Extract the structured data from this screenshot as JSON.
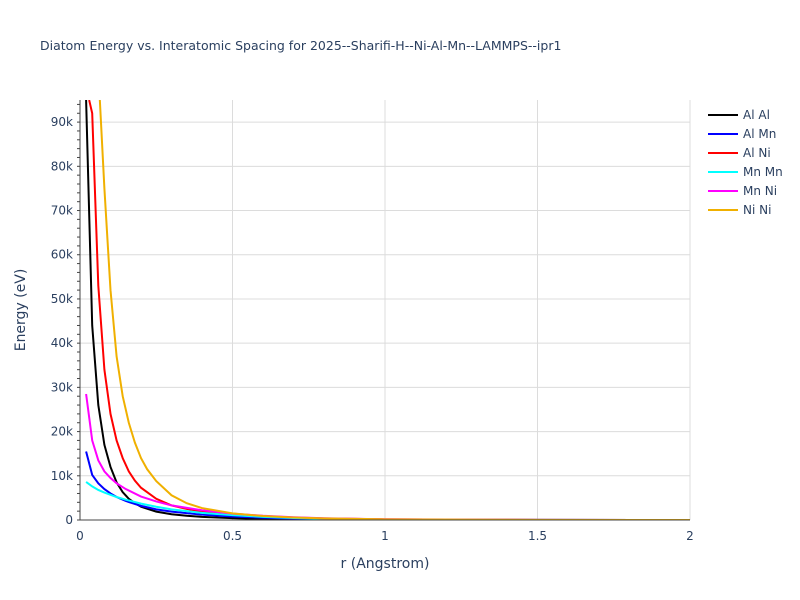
{
  "chart_data": {
    "type": "line",
    "title": "Diatom Energy vs. Interatomic Spacing for 2025--Sharifi-H--Ni-Al-Mn--LAMMPS--ipr1",
    "xlabel": "r (Angstrom)",
    "ylabel": "Energy (eV)",
    "xlim": [
      0,
      2
    ],
    "ylim": [
      0,
      95000
    ],
    "x_ticks": [
      0,
      0.5,
      1,
      1.5,
      2
    ],
    "x_tick_labels": [
      "0",
      "0.5",
      "1",
      "1.5",
      "2"
    ],
    "y_ticks": [
      0,
      10000,
      20000,
      30000,
      40000,
      50000,
      60000,
      70000,
      80000,
      90000
    ],
    "y_tick_labels": [
      "0",
      "10k",
      "20k",
      "30k",
      "40k",
      "50k",
      "60k",
      "70k",
      "80k",
      "90k"
    ],
    "grid": true,
    "legend_position": "top-right",
    "series": [
      {
        "name": "Al Al",
        "color": "#000000",
        "x": [
          0.02,
          0.04,
          0.06,
          0.08,
          0.1,
          0.12,
          0.14,
          0.16,
          0.18,
          0.2,
          0.25,
          0.3,
          0.35,
          0.4,
          0.5,
          0.6,
          0.7,
          0.8,
          1.0,
          1.5,
          2.0
        ],
        "y": [
          95000,
          44000,
          26000,
          17000,
          12000,
          8500,
          6300,
          4800,
          3800,
          3000,
          1900,
          1300,
          950,
          700,
          420,
          250,
          150,
          90,
          40,
          10,
          0
        ]
      },
      {
        "name": "Al Mn",
        "color": "#0000ff",
        "x": [
          0.02,
          0.04,
          0.06,
          0.08,
          0.1,
          0.12,
          0.15,
          0.2,
          0.25,
          0.3,
          0.4,
          0.5,
          0.6,
          0.7,
          0.8,
          1.0,
          1.5,
          2.0
        ],
        "y": [
          15500,
          10200,
          8300,
          7000,
          6000,
          5200,
          4300,
          3200,
          2400,
          1900,
          1200,
          800,
          520,
          330,
          200,
          80,
          15,
          0
        ]
      },
      {
        "name": "Al Ni",
        "color": "#ff0000",
        "x": [
          0.03,
          0.04,
          0.06,
          0.08,
          0.1,
          0.12,
          0.14,
          0.16,
          0.18,
          0.2,
          0.25,
          0.3,
          0.35,
          0.4,
          0.5,
          0.6,
          0.7,
          0.8,
          1.0,
          1.5,
          2.0
        ],
        "y": [
          95000,
          92000,
          53000,
          34000,
          24000,
          18000,
          14000,
          11000,
          8900,
          7300,
          4800,
          3300,
          2500,
          1900,
          1200,
          780,
          520,
          350,
          150,
          20,
          0
        ]
      },
      {
        "name": "Mn Mn",
        "color": "#00ffff",
        "x": [
          0.02,
          0.04,
          0.06,
          0.08,
          0.1,
          0.12,
          0.15,
          0.2,
          0.25,
          0.3,
          0.4,
          0.5,
          0.6,
          0.7,
          0.8,
          1.0,
          1.5,
          2.0
        ],
        "y": [
          8600,
          7600,
          6800,
          6200,
          5700,
          5200,
          4600,
          3700,
          3000,
          2400,
          1600,
          1100,
          720,
          460,
          290,
          110,
          20,
          0
        ]
      },
      {
        "name": "Mn Ni",
        "color": "#ff00ff",
        "x": [
          0.02,
          0.04,
          0.06,
          0.08,
          0.1,
          0.12,
          0.15,
          0.2,
          0.25,
          0.3,
          0.4,
          0.5,
          0.6,
          0.7,
          0.8,
          1.0,
          1.5,
          2.0
        ],
        "y": [
          28500,
          18000,
          13500,
          11000,
          9500,
          8300,
          7000,
          5300,
          4200,
          3300,
          2200,
          1450,
          950,
          620,
          400,
          160,
          25,
          0
        ]
      },
      {
        "name": "Ni Ni",
        "color": "#f0b000",
        "x": [
          0.065,
          0.08,
          0.1,
          0.12,
          0.14,
          0.16,
          0.18,
          0.2,
          0.22,
          0.25,
          0.3,
          0.35,
          0.4,
          0.5,
          0.6,
          0.7,
          0.8,
          1.0,
          1.5,
          2.0
        ],
        "y": [
          95000,
          75000,
          52000,
          37000,
          28000,
          22000,
          17500,
          14000,
          11500,
          8800,
          5600,
          3800,
          2700,
          1500,
          900,
          560,
          360,
          150,
          25,
          0
        ]
      }
    ]
  }
}
